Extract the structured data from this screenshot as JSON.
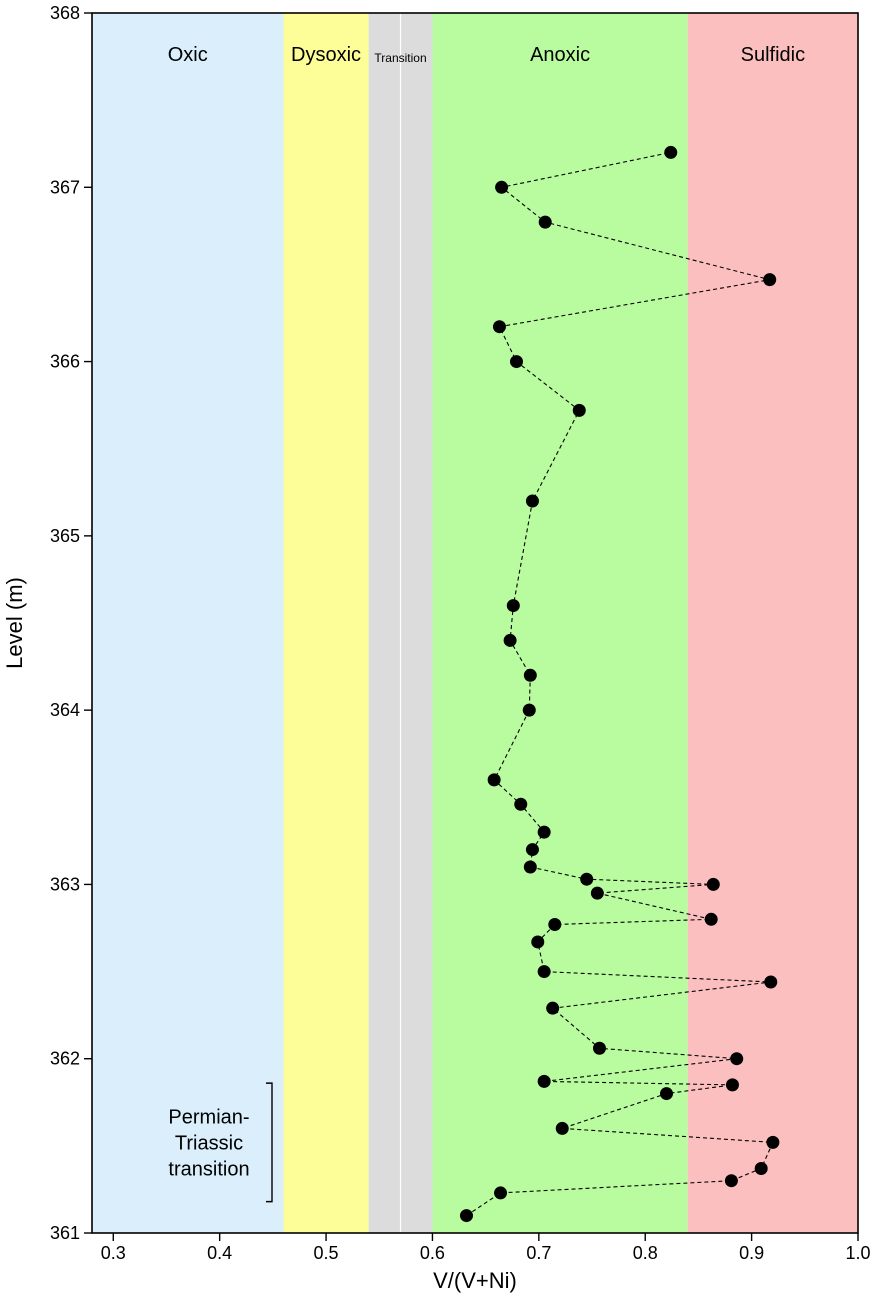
{
  "chart_data": {
    "type": "scatter",
    "xlabel": "V/(V+Ni)",
    "ylabel": "Level (m)",
    "xlim": [
      0.28,
      1.0
    ],
    "ylim": [
      361,
      368
    ],
    "x_ticks": [
      0.3,
      0.4,
      0.5,
      0.6,
      0.7,
      0.8,
      0.9,
      1.0
    ],
    "x_tick_labels": [
      "0.3",
      "0.4",
      "0.5",
      "0.6",
      "0.7",
      "0.8",
      "0.9",
      "1.0"
    ],
    "y_ticks": [
      361,
      362,
      363,
      364,
      365,
      366,
      367,
      368
    ],
    "y_tick_labels": [
      "361",
      "362",
      "363",
      "364",
      "365",
      "366",
      "367",
      "368"
    ],
    "zones": [
      {
        "label": "Oxic",
        "from": 0.28,
        "to": 0.46,
        "color": "#dbeefb"
      },
      {
        "label": "Dysoxic",
        "from": 0.46,
        "to": 0.54,
        "color": "#fefe99"
      },
      {
        "label": "Transition",
        "from": 0.54,
        "to": 0.6,
        "color": "#dcdcdc"
      },
      {
        "label": "Anoxic",
        "from": 0.6,
        "to": 0.84,
        "color": "#b9fc9f"
      },
      {
        "label": "Sulfidic",
        "from": 0.84,
        "to": 1.0,
        "color": "#fcbfbf"
      }
    ],
    "transition_divider_x": 0.57,
    "annotation": {
      "lines": [
        "Permian-",
        "Triassic",
        "transition"
      ],
      "y_from": 361.18,
      "y_to": 361.86
    },
    "points": [
      {
        "x": 0.632,
        "y": 361.1
      },
      {
        "x": 0.664,
        "y": 361.23
      },
      {
        "x": 0.881,
        "y": 361.3
      },
      {
        "x": 0.909,
        "y": 361.37
      },
      {
        "x": 0.92,
        "y": 361.52
      },
      {
        "x": 0.722,
        "y": 361.6
      },
      {
        "x": 0.82,
        "y": 361.8
      },
      {
        "x": 0.882,
        "y": 361.85
      },
      {
        "x": 0.705,
        "y": 361.87
      },
      {
        "x": 0.886,
        "y": 362.0
      },
      {
        "x": 0.757,
        "y": 362.06
      },
      {
        "x": 0.713,
        "y": 362.29
      },
      {
        "x": 0.918,
        "y": 362.44
      },
      {
        "x": 0.705,
        "y": 362.5
      },
      {
        "x": 0.699,
        "y": 362.67
      },
      {
        "x": 0.715,
        "y": 362.77
      },
      {
        "x": 0.862,
        "y": 362.8
      },
      {
        "x": 0.755,
        "y": 362.95
      },
      {
        "x": 0.864,
        "y": 363.0
      },
      {
        "x": 0.745,
        "y": 363.03
      },
      {
        "x": 0.692,
        "y": 363.1
      },
      {
        "x": 0.694,
        "y": 363.2
      },
      {
        "x": 0.705,
        "y": 363.3
      },
      {
        "x": 0.683,
        "y": 363.46
      },
      {
        "x": 0.658,
        "y": 363.6
      },
      {
        "x": 0.691,
        "y": 364.0
      },
      {
        "x": 0.692,
        "y": 364.2
      },
      {
        "x": 0.673,
        "y": 364.4
      },
      {
        "x": 0.676,
        "y": 364.6
      },
      {
        "x": 0.694,
        "y": 365.2
      },
      {
        "x": 0.738,
        "y": 365.72
      },
      {
        "x": 0.679,
        "y": 366.0
      },
      {
        "x": 0.663,
        "y": 366.2
      },
      {
        "x": 0.917,
        "y": 366.47
      },
      {
        "x": 0.706,
        "y": 366.8
      },
      {
        "x": 0.665,
        "y": 367.0
      },
      {
        "x": 0.824,
        "y": 367.2
      }
    ]
  }
}
